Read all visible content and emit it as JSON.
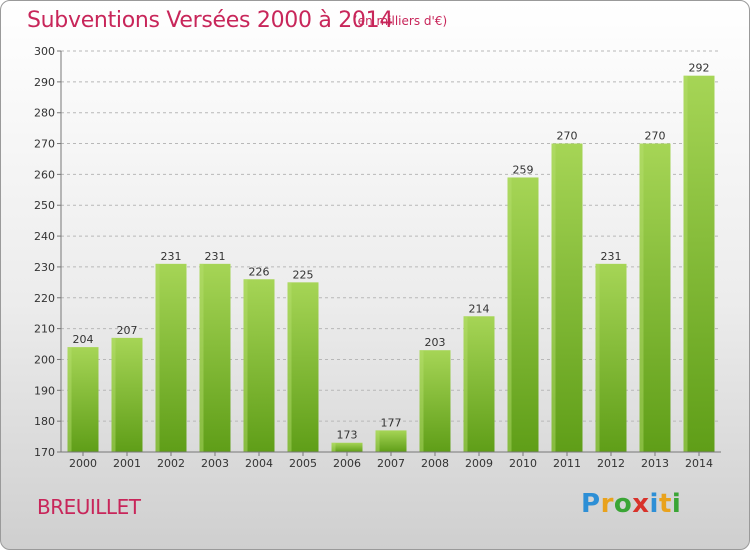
{
  "header": {
    "title": "Subventions Versées 2000 à 2014",
    "unit": "(en milliers d'€)"
  },
  "footer": {
    "place": "BREUILLET",
    "brand": "Proxiti"
  },
  "colors": {
    "title": "#c8265a",
    "bar_light": "#a6d556",
    "bar_dark": "#5f9e18",
    "grid": "#b8b8b8"
  },
  "chart_data": {
    "type": "bar",
    "categories": [
      "2000",
      "2001",
      "2002",
      "2003",
      "2004",
      "2005",
      "2006",
      "2007",
      "2008",
      "2009",
      "2010",
      "2011",
      "2012",
      "2013",
      "2014"
    ],
    "values": [
      204,
      207,
      231,
      231,
      226,
      225,
      173,
      177,
      203,
      214,
      259,
      270,
      231,
      270,
      292
    ],
    "ylim": [
      170,
      300
    ],
    "yticks": [
      170,
      180,
      190,
      200,
      210,
      220,
      230,
      240,
      250,
      260,
      270,
      280,
      290,
      300
    ],
    "grid": "horizontal dashed",
    "data_labels": true
  }
}
